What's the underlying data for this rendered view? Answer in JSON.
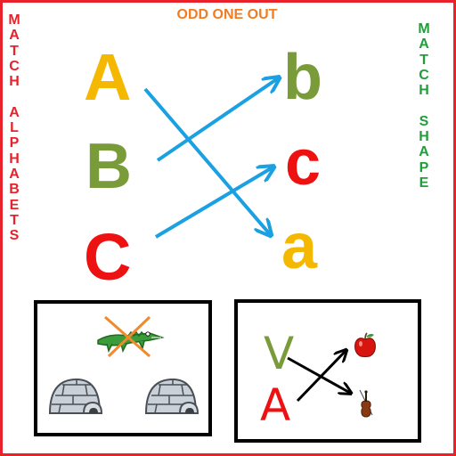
{
  "title": "ODD ONE OUT",
  "left_vertical": [
    "M",
    "A",
    "T",
    "C",
    "H",
    " ",
    "A",
    "L",
    "P",
    "H",
    "A",
    "B",
    "E",
    "T",
    "S"
  ],
  "right_vertical": [
    "M",
    "A",
    "T",
    "C",
    "H",
    " ",
    "S",
    "H",
    "A",
    "P",
    "E"
  ],
  "upper_letters": {
    "A": "A",
    "B": "B",
    "C": "C"
  },
  "lower_letters": {
    "b": "b",
    "c": "c",
    "a": "a"
  },
  "shape_letters": {
    "v": "V",
    "a": "A"
  },
  "colors": {
    "border": "#e8212b",
    "title": "#f07d22",
    "left_vertical": "#e8212b",
    "right_vertical": "#1f9e3a",
    "yellow": "#f5b800",
    "olive": "#7a9b3a",
    "red": "#ee1111",
    "arrow": "#1ba0e2"
  },
  "icons": [
    "crocodile-icon",
    "igloo-icon",
    "apple-icon",
    "violin-icon"
  ]
}
